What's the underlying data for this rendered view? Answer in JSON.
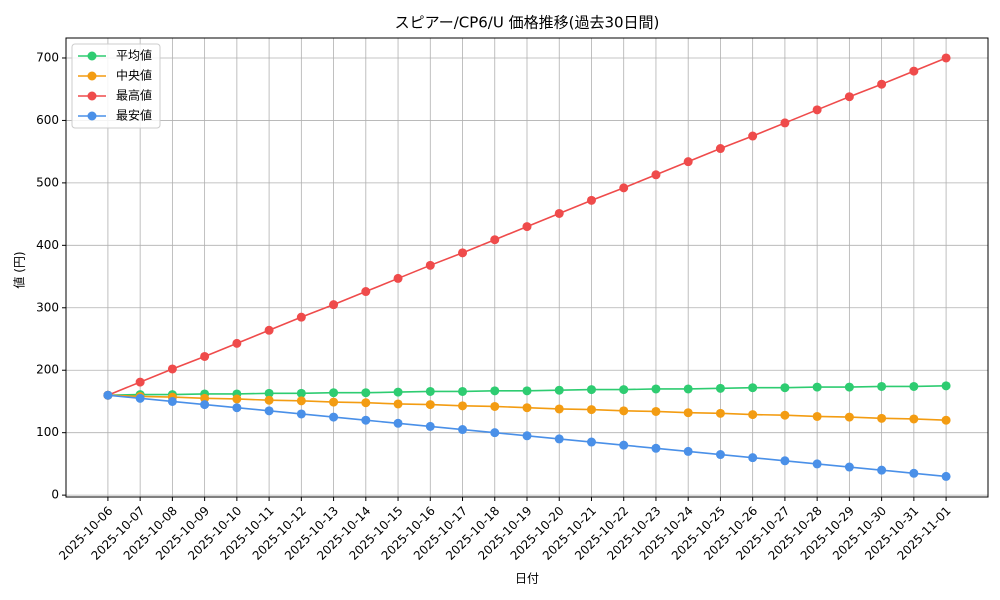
{
  "chart_data": {
    "type": "line",
    "title": "スピアー/CP6/U 価格推移(過去30日間)",
    "x_label": "日付",
    "y_label": "値 (円)",
    "categories": [
      "2025-10-06",
      "2025-10-07",
      "2025-10-08",
      "2025-10-09",
      "2025-10-10",
      "2025-10-11",
      "2025-10-12",
      "2025-10-13",
      "2025-10-14",
      "2025-10-15",
      "2025-10-16",
      "2025-10-17",
      "2025-10-18",
      "2025-10-19",
      "2025-10-20",
      "2025-10-21",
      "2025-10-22",
      "2025-10-23",
      "2025-10-24",
      "2025-10-25",
      "2025-10-26",
      "2025-10-27",
      "2025-10-28",
      "2025-10-29",
      "2025-10-30",
      "2025-10-31",
      "2025-11-01"
    ],
    "series": [
      {
        "name": "平均値",
        "color": "#2ecc71",
        "values": [
          160,
          161,
          161,
          162,
          162,
          163,
          163,
          164,
          164,
          165,
          166,
          166,
          167,
          167,
          168,
          169,
          169,
          170,
          170,
          171,
          172,
          172,
          173,
          173,
          174,
          174,
          175
        ]
      },
      {
        "name": "中央値",
        "color": "#f39c12",
        "values": [
          160,
          158,
          157,
          155,
          154,
          152,
          151,
          149,
          148,
          146,
          145,
          143,
          142,
          140,
          138,
          137,
          135,
          134,
          132,
          131,
          129,
          128,
          126,
          125,
          123,
          122,
          120
        ]
      },
      {
        "name": "最高値",
        "color": "#ef4b4b",
        "values": [
          160,
          181,
          202,
          222,
          243,
          264,
          285,
          305,
          326,
          347,
          368,
          388,
          409,
          430,
          451,
          472,
          492,
          513,
          534,
          555,
          575,
          596,
          617,
          638,
          658,
          679,
          700
        ]
      },
      {
        "name": "最安値",
        "color": "#4a90e8",
        "values": [
          160,
          155,
          150,
          145,
          140,
          135,
          130,
          125,
          120,
          115,
          110,
          105,
          100,
          95,
          90,
          85,
          80,
          75,
          70,
          65,
          60,
          55,
          50,
          45,
          40,
          35,
          30
        ]
      }
    ],
    "ylim": [
      -3,
      732
    ],
    "yticks": [
      0,
      100,
      200,
      300,
      400,
      500,
      600,
      700
    ],
    "grid": true,
    "legend": "upper-left"
  }
}
